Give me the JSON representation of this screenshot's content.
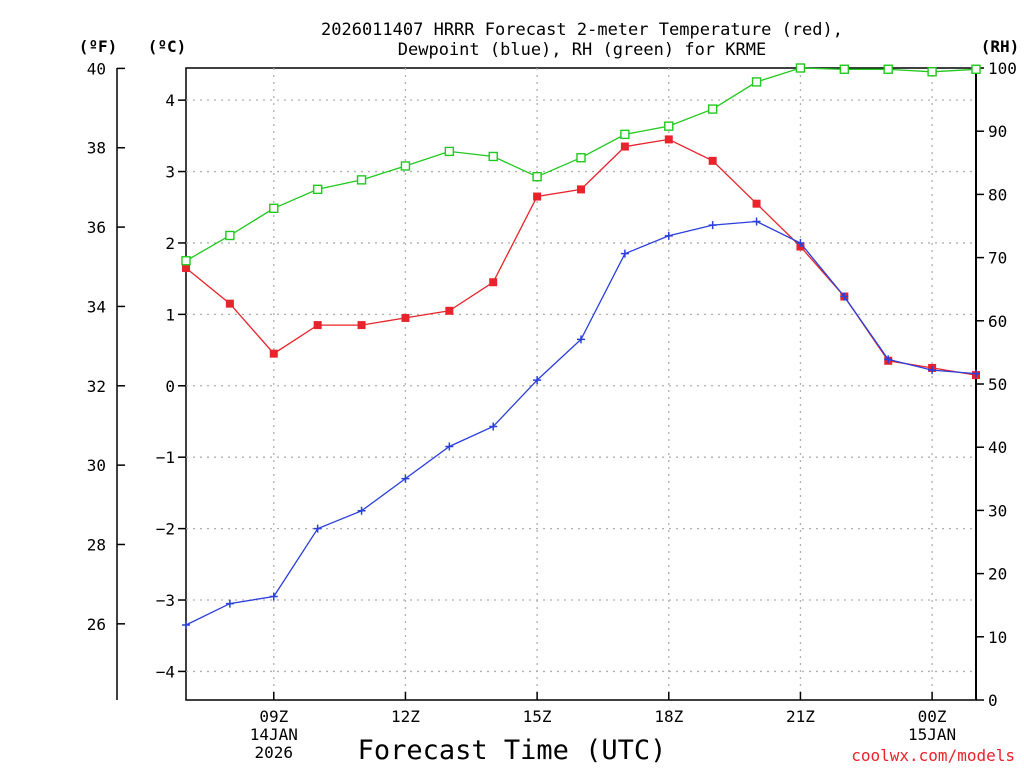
{
  "chart_data": {
    "type": "line",
    "title_lines": [
      "2026011407 HRRR Forecast 2-meter Temperature (red),",
      "Dewpoint (blue), RH (green) for KRME"
    ],
    "xlabel": "Forecast Time (UTC)",
    "credit": "coolwx.com/models",
    "units": {
      "fahrenheit": "(ºF)",
      "celsius": "(ºC)",
      "rh": "(RH)"
    },
    "x_hours": [
      7,
      8,
      9,
      10,
      11,
      12,
      13,
      14,
      15,
      16,
      17,
      18,
      19,
      20,
      21,
      22,
      23,
      24,
      25
    ],
    "x_range": [
      7,
      25
    ],
    "x_ticks": [
      {
        "hour": 9,
        "lines": [
          "09Z",
          "14JAN",
          "2026"
        ]
      },
      {
        "hour": 12,
        "lines": [
          "12Z"
        ]
      },
      {
        "hour": 15,
        "lines": [
          "15Z"
        ]
      },
      {
        "hour": 18,
        "lines": [
          "18Z"
        ]
      },
      {
        "hour": 21,
        "lines": [
          "21Z"
        ]
      },
      {
        "hour": 24,
        "lines": [
          "00Z",
          "15JAN"
        ]
      }
    ],
    "y_celsius": {
      "range": [
        -4.4,
        4.45
      ],
      "ticks": [
        "4",
        "3",
        "2",
        "1",
        "0",
        "−1",
        "−2",
        "−3",
        "−4"
      ]
    },
    "y_fahrenheit": {
      "range": [
        24.08,
        40.01
      ],
      "ticks": [
        "40",
        "38",
        "36",
        "34",
        "32",
        "30",
        "28",
        "26"
      ]
    },
    "y_rh": {
      "range": [
        0,
        100
      ],
      "ticks": [
        "100",
        "90",
        "80",
        "70",
        "60",
        "50",
        "40",
        "30",
        "20",
        "10",
        "0"
      ]
    },
    "series": [
      {
        "name": "Temperature",
        "unit": "C",
        "color": "#e8232b",
        "marker": "filled-square",
        "values": [
          1.65,
          1.15,
          0.45,
          0.85,
          0.85,
          0.95,
          1.05,
          1.45,
          2.65,
          2.75,
          3.35,
          3.45,
          3.15,
          2.55,
          1.95,
          1.25,
          0.35,
          0.25,
          0.15
        ]
      },
      {
        "name": "Dewpoint",
        "unit": "C",
        "color": "#2a3fdc",
        "marker": "plus",
        "values": [
          -3.35,
          -3.05,
          -2.95,
          -2.0,
          -1.75,
          -1.3,
          -0.85,
          -0.57,
          0.08,
          0.65,
          1.85,
          2.1,
          2.25,
          2.3,
          2.0,
          1.25,
          0.37,
          0.22,
          0.17
        ]
      },
      {
        "name": "RH",
        "unit": "%",
        "color": "#21c81e",
        "marker": "open-square",
        "values": [
          69.5,
          73.5,
          77.8,
          80.8,
          82.3,
          84.5,
          86.8,
          86.0,
          82.8,
          85.8,
          89.5,
          90.8,
          93.5,
          97.8,
          100,
          99.8,
          99.8,
          99.4,
          99.8
        ]
      }
    ]
  }
}
